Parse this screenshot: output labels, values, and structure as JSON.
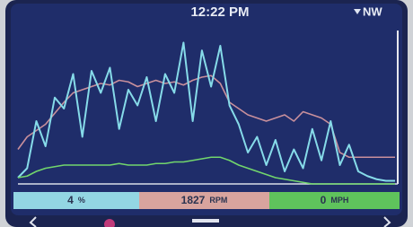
{
  "status": {
    "time": "12:22 PM",
    "heading": "NW"
  },
  "chart_data": {
    "type": "line",
    "ylim": [
      0,
      100
    ],
    "series": [
      {
        "color": "#c9909c",
        "values": [
          22,
          30,
          34,
          38,
          45,
          52,
          58,
          60,
          62,
          64,
          63,
          66,
          65,
          62,
          64,
          66,
          64,
          65,
          63,
          66,
          68,
          69,
          64,
          52,
          48,
          44,
          42,
          40,
          42,
          44,
          40,
          46,
          44,
          42,
          38,
          20,
          17,
          17,
          17,
          17,
          17,
          17
        ]
      },
      {
        "color": "#86dbe9",
        "values": [
          4,
          10,
          40,
          24,
          55,
          48,
          70,
          30,
          72,
          58,
          74,
          35,
          60,
          50,
          68,
          40,
          70,
          58,
          90,
          40,
          85,
          62,
          88,
          50,
          38,
          20,
          30,
          12,
          28,
          8,
          22,
          10,
          35,
          15,
          40,
          12,
          25,
          8,
          5,
          3,
          2,
          2
        ]
      },
      {
        "color": "#72d66c",
        "values": [
          4,
          5,
          8,
          10,
          11,
          12,
          12,
          12,
          12,
          12,
          12,
          13,
          12,
          12,
          12,
          13,
          13,
          14,
          14,
          15,
          16,
          17,
          17,
          15,
          12,
          10,
          8,
          6,
          4,
          3,
          2,
          1,
          0,
          0,
          0,
          0,
          0,
          0,
          0,
          0,
          0,
          0
        ]
      }
    ]
  },
  "readouts": [
    {
      "value": "4",
      "unit": "%"
    },
    {
      "value": "1827",
      "unit": "RPM"
    },
    {
      "value": "0",
      "unit": "MPH"
    }
  ]
}
